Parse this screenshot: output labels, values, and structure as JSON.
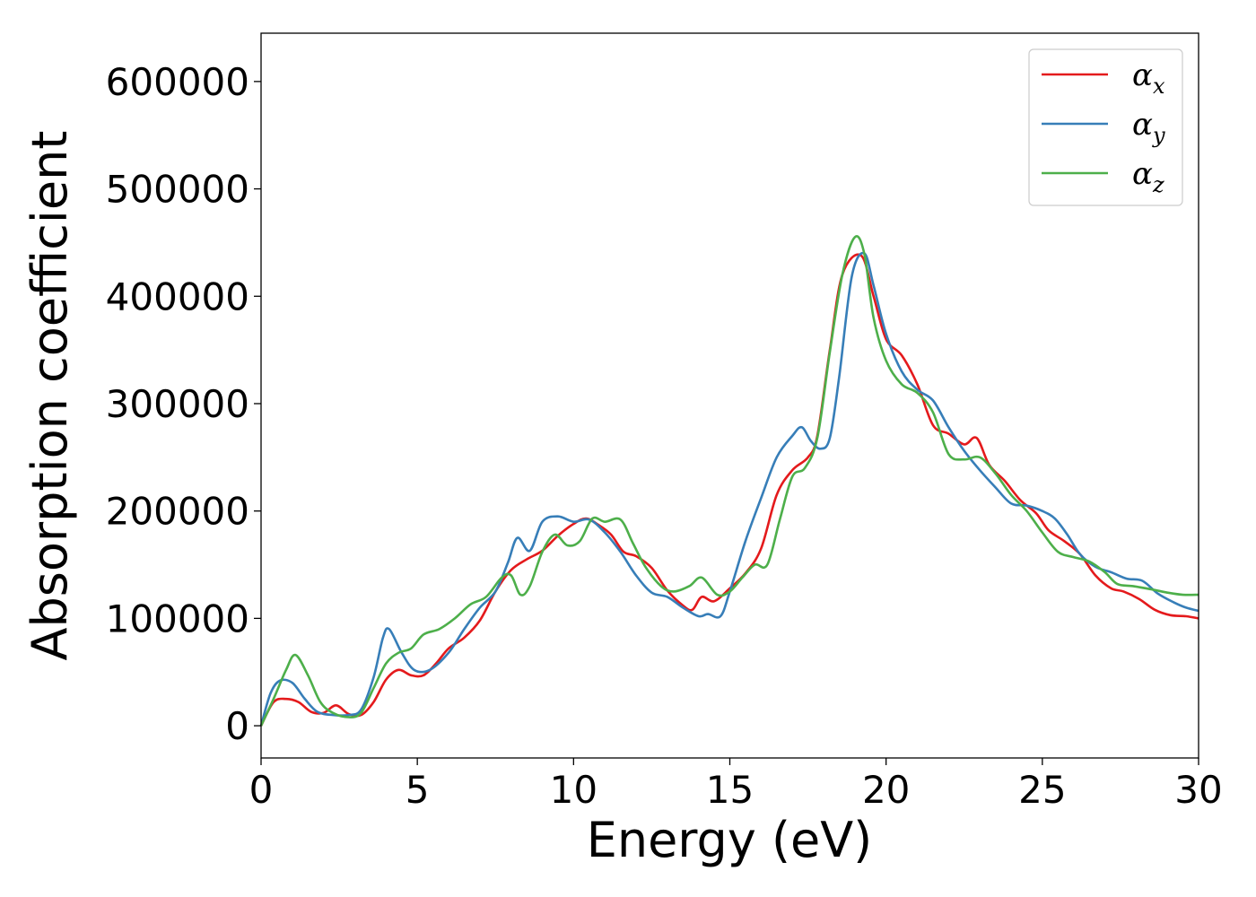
{
  "chart_data": {
    "type": "line",
    "xlabel": "Energy (eV)",
    "ylabel": "Absorption coefficient",
    "xlim": [
      0,
      30
    ],
    "ylim": [
      -30000,
      645000
    ],
    "xticks": [
      0,
      5,
      10,
      15,
      20,
      25,
      30
    ],
    "xtick_labels": [
      "0",
      "5",
      "10",
      "15",
      "20",
      "25",
      "30"
    ],
    "yticks": [
      0,
      100000,
      200000,
      300000,
      400000,
      500000,
      600000
    ],
    "ytick_labels": [
      "0",
      "100000",
      "200000",
      "300000",
      "400000",
      "500000",
      "600000"
    ],
    "grid": false,
    "legend_position": "top-right",
    "series": [
      {
        "name": "α",
        "subscript": "x",
        "color": "#e41a1c",
        "points": [
          [
            0,
            0
          ],
          [
            0.4,
            22000
          ],
          [
            0.8,
            25000
          ],
          [
            1.2,
            22000
          ],
          [
            1.6,
            13000
          ],
          [
            2.0,
            12000
          ],
          [
            2.4,
            19000
          ],
          [
            2.8,
            11000
          ],
          [
            3.2,
            10000
          ],
          [
            3.6,
            22000
          ],
          [
            4.0,
            43000
          ],
          [
            4.4,
            52000
          ],
          [
            4.8,
            47000
          ],
          [
            5.2,
            47000
          ],
          [
            5.6,
            58000
          ],
          [
            6.0,
            72000
          ],
          [
            6.5,
            82000
          ],
          [
            7.0,
            98000
          ],
          [
            7.5,
            125000
          ],
          [
            8.0,
            145000
          ],
          [
            8.5,
            155000
          ],
          [
            9.0,
            163000
          ],
          [
            9.5,
            177000
          ],
          [
            10.0,
            188000
          ],
          [
            10.4,
            193000
          ],
          [
            10.8,
            187000
          ],
          [
            11.2,
            178000
          ],
          [
            11.6,
            162000
          ],
          [
            12.0,
            158000
          ],
          [
            12.5,
            147000
          ],
          [
            13.0,
            126000
          ],
          [
            13.5,
            112000
          ],
          [
            13.8,
            108000
          ],
          [
            14.1,
            120000
          ],
          [
            14.5,
            116000
          ],
          [
            15.0,
            128000
          ],
          [
            15.5,
            142000
          ],
          [
            16.0,
            165000
          ],
          [
            16.5,
            215000
          ],
          [
            17.0,
            238000
          ],
          [
            17.5,
            250000
          ],
          [
            17.8,
            270000
          ],
          [
            18.2,
            350000
          ],
          [
            18.6,
            420000
          ],
          [
            19.2,
            438000
          ],
          [
            19.6,
            400000
          ],
          [
            20.0,
            360000
          ],
          [
            20.5,
            345000
          ],
          [
            21.0,
            318000
          ],
          [
            21.5,
            280000
          ],
          [
            22.0,
            272000
          ],
          [
            22.5,
            262000
          ],
          [
            22.9,
            268000
          ],
          [
            23.3,
            243000
          ],
          [
            23.8,
            228000
          ],
          [
            24.3,
            210000
          ],
          [
            24.8,
            198000
          ],
          [
            25.2,
            182000
          ],
          [
            25.7,
            172000
          ],
          [
            26.2,
            160000
          ],
          [
            26.7,
            140000
          ],
          [
            27.2,
            128000
          ],
          [
            27.6,
            125000
          ],
          [
            28.1,
            118000
          ],
          [
            28.6,
            108000
          ],
          [
            29.1,
            103000
          ],
          [
            29.6,
            102000
          ],
          [
            30.0,
            100000
          ]
        ]
      },
      {
        "name": "α",
        "subscript": "y",
        "color": "#377eb8",
        "points": [
          [
            0,
            0
          ],
          [
            0.3,
            30000
          ],
          [
            0.6,
            42000
          ],
          [
            1.0,
            40000
          ],
          [
            1.4,
            25000
          ],
          [
            1.8,
            13000
          ],
          [
            2.3,
            10000
          ],
          [
            2.8,
            10000
          ],
          [
            3.2,
            15000
          ],
          [
            3.6,
            45000
          ],
          [
            3.9,
            82000
          ],
          [
            4.1,
            90000
          ],
          [
            4.5,
            68000
          ],
          [
            4.9,
            52000
          ],
          [
            5.4,
            52000
          ],
          [
            6.0,
            68000
          ],
          [
            6.5,
            90000
          ],
          [
            7.0,
            110000
          ],
          [
            7.5,
            125000
          ],
          [
            7.9,
            152000
          ],
          [
            8.2,
            175000
          ],
          [
            8.6,
            163000
          ],
          [
            9.0,
            190000
          ],
          [
            9.5,
            195000
          ],
          [
            10.0,
            190000
          ],
          [
            10.5,
            192000
          ],
          [
            11.0,
            180000
          ],
          [
            11.5,
            162000
          ],
          [
            12.0,
            140000
          ],
          [
            12.5,
            124000
          ],
          [
            13.0,
            120000
          ],
          [
            13.5,
            110000
          ],
          [
            14.0,
            102000
          ],
          [
            14.3,
            104000
          ],
          [
            14.7,
            102000
          ],
          [
            15.0,
            125000
          ],
          [
            15.5,
            172000
          ],
          [
            16.0,
            212000
          ],
          [
            16.5,
            250000
          ],
          [
            17.0,
            270000
          ],
          [
            17.3,
            278000
          ],
          [
            17.6,
            265000
          ],
          [
            17.9,
            258000
          ],
          [
            18.2,
            268000
          ],
          [
            18.5,
            325000
          ],
          [
            18.9,
            418000
          ],
          [
            19.3,
            440000
          ],
          [
            19.6,
            410000
          ],
          [
            20.0,
            365000
          ],
          [
            20.5,
            330000
          ],
          [
            21.0,
            313000
          ],
          [
            21.5,
            303000
          ],
          [
            22.0,
            278000
          ],
          [
            22.5,
            256000
          ],
          [
            23.0,
            238000
          ],
          [
            23.5,
            222000
          ],
          [
            24.0,
            207000
          ],
          [
            24.5,
            205000
          ],
          [
            25.0,
            200000
          ],
          [
            25.4,
            193000
          ],
          [
            25.8,
            178000
          ],
          [
            26.2,
            160000
          ],
          [
            26.7,
            148000
          ],
          [
            27.2,
            143000
          ],
          [
            27.7,
            137000
          ],
          [
            28.2,
            135000
          ],
          [
            28.7,
            123000
          ],
          [
            29.2,
            115000
          ],
          [
            29.6,
            110000
          ],
          [
            30.0,
            107000
          ]
        ]
      },
      {
        "name": "α",
        "subscript": "z",
        "color": "#4daf4a",
        "points": [
          [
            0,
            0
          ],
          [
            0.4,
            25000
          ],
          [
            0.8,
            52000
          ],
          [
            1.1,
            66000
          ],
          [
            1.5,
            47000
          ],
          [
            1.9,
            22000
          ],
          [
            2.3,
            12000
          ],
          [
            2.8,
            8000
          ],
          [
            3.2,
            12000
          ],
          [
            3.6,
            35000
          ],
          [
            4.0,
            58000
          ],
          [
            4.4,
            68000
          ],
          [
            4.8,
            72000
          ],
          [
            5.2,
            85000
          ],
          [
            5.7,
            90000
          ],
          [
            6.2,
            100000
          ],
          [
            6.7,
            113000
          ],
          [
            7.2,
            120000
          ],
          [
            7.7,
            138000
          ],
          [
            8.0,
            140000
          ],
          [
            8.3,
            122000
          ],
          [
            8.6,
            130000
          ],
          [
            9.0,
            162000
          ],
          [
            9.4,
            178000
          ],
          [
            9.8,
            168000
          ],
          [
            10.2,
            172000
          ],
          [
            10.6,
            193000
          ],
          [
            11.0,
            190000
          ],
          [
            11.5,
            192000
          ],
          [
            11.9,
            170000
          ],
          [
            12.3,
            148000
          ],
          [
            12.8,
            130000
          ],
          [
            13.2,
            125000
          ],
          [
            13.7,
            130000
          ],
          [
            14.1,
            138000
          ],
          [
            14.6,
            122000
          ],
          [
            15.0,
            125000
          ],
          [
            15.4,
            138000
          ],
          [
            15.8,
            150000
          ],
          [
            16.2,
            150000
          ],
          [
            16.6,
            192000
          ],
          [
            17.0,
            232000
          ],
          [
            17.4,
            240000
          ],
          [
            17.8,
            268000
          ],
          [
            18.2,
            348000
          ],
          [
            18.6,
            420000
          ],
          [
            19.0,
            455000
          ],
          [
            19.3,
            440000
          ],
          [
            19.6,
            380000
          ],
          [
            20.0,
            340000
          ],
          [
            20.5,
            318000
          ],
          [
            21.0,
            310000
          ],
          [
            21.5,
            292000
          ],
          [
            22.0,
            253000
          ],
          [
            22.5,
            248000
          ],
          [
            23.0,
            250000
          ],
          [
            23.5,
            235000
          ],
          [
            24.0,
            215000
          ],
          [
            24.5,
            200000
          ],
          [
            25.0,
            180000
          ],
          [
            25.5,
            162000
          ],
          [
            26.0,
            157000
          ],
          [
            26.5,
            153000
          ],
          [
            27.0,
            143000
          ],
          [
            27.4,
            132000
          ],
          [
            27.9,
            130000
          ],
          [
            28.5,
            127000
          ],
          [
            29.0,
            124000
          ],
          [
            29.5,
            122000
          ],
          [
            30.0,
            122000
          ]
        ]
      }
    ]
  }
}
